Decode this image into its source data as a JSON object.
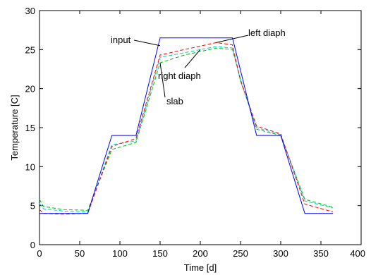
{
  "chart_data": {
    "type": "line",
    "title": "",
    "xlabel": "Time [d]",
    "ylabel": "Temperature [C]",
    "xlim": [
      0,
      400
    ],
    "ylim": [
      0,
      30
    ],
    "xticks": [
      0,
      50,
      100,
      150,
      200,
      250,
      300,
      350,
      400
    ],
    "yticks": [
      0,
      5,
      10,
      15,
      20,
      25,
      30
    ],
    "grid": false,
    "legend": "none",
    "series": [
      {
        "name": "input",
        "color": "#0000ff",
        "style": "solid",
        "x": [
          0,
          60,
          90,
          120,
          150,
          240,
          270,
          300,
          330,
          365
        ],
        "y": [
          4,
          4,
          14,
          14,
          26.5,
          26.5,
          14,
          14,
          4,
          4
        ]
      },
      {
        "name": "left diaph",
        "color": "#ff0000",
        "style": "dashed",
        "x": [
          0,
          5,
          30,
          60,
          90,
          120,
          150,
          180,
          220,
          240,
          250,
          270,
          300,
          330,
          365
        ],
        "y": [
          4.5,
          4.0,
          3.9,
          4.0,
          12.6,
          13.6,
          24.3,
          25.0,
          25.9,
          25.6,
          21.0,
          15.2,
          14.2,
          5.2,
          4.2
        ]
      },
      {
        "name": "right diaph",
        "color": "#00cccc",
        "style": "dashed",
        "x": [
          0,
          5,
          30,
          60,
          90,
          120,
          150,
          180,
          220,
          240,
          250,
          270,
          300,
          330,
          365
        ],
        "y": [
          5.3,
          4.6,
          4.3,
          4.2,
          12.8,
          13.3,
          24.0,
          24.6,
          25.4,
          25.2,
          21.0,
          15.0,
          14.1,
          5.6,
          4.7
        ]
      },
      {
        "name": "slab",
        "color": "#00bb00",
        "style": "dashed",
        "x": [
          0,
          5,
          30,
          60,
          90,
          120,
          150,
          180,
          220,
          240,
          250,
          270,
          300,
          330,
          365
        ],
        "y": [
          5.8,
          4.9,
          4.5,
          4.4,
          12.2,
          13.1,
          23.3,
          24.3,
          25.2,
          25.0,
          21.2,
          14.8,
          14.0,
          5.8,
          4.8
        ]
      }
    ],
    "annotations": [
      {
        "text": "input",
        "series": "input",
        "target": [
          150,
          25.5
        ]
      },
      {
        "text": "left diaph",
        "series": "left diaph",
        "target": [
          220,
          25.9
        ]
      },
      {
        "text": "right diaph",
        "series": "right diaph",
        "target": [
          200,
          25.0
        ]
      },
      {
        "text": "slab",
        "series": "slab",
        "target": [
          150,
          23.3
        ]
      }
    ]
  }
}
